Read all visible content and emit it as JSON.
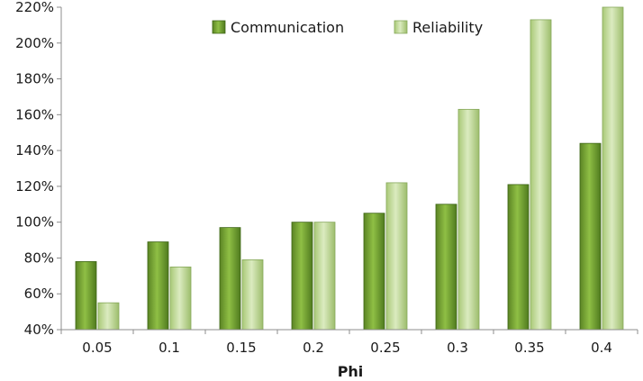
{
  "chart_data": {
    "type": "bar",
    "title": "",
    "xlabel": "Phi",
    "ylabel": "",
    "categories": [
      "0.05",
      "0.1",
      "0.15",
      "0.2",
      "0.25",
      "0.3",
      "0.35",
      "0.4"
    ],
    "series": [
      {
        "name": "Communication",
        "color": "#6f9a2e",
        "values": [
          78,
          89,
          97,
          100,
          105,
          110,
          121,
          144
        ]
      },
      {
        "name": "Reliability",
        "color": "#b9d48a",
        "values": [
          55,
          75,
          79,
          100,
          122,
          163,
          213,
          220
        ]
      }
    ],
    "ylim": [
      40,
      220
    ],
    "yticks": [
      "40%",
      "60%",
      "80%",
      "100%",
      "120%",
      "140%",
      "160%",
      "180%",
      "200%",
      "220%"
    ],
    "legend_position": "top",
    "grid": false
  }
}
